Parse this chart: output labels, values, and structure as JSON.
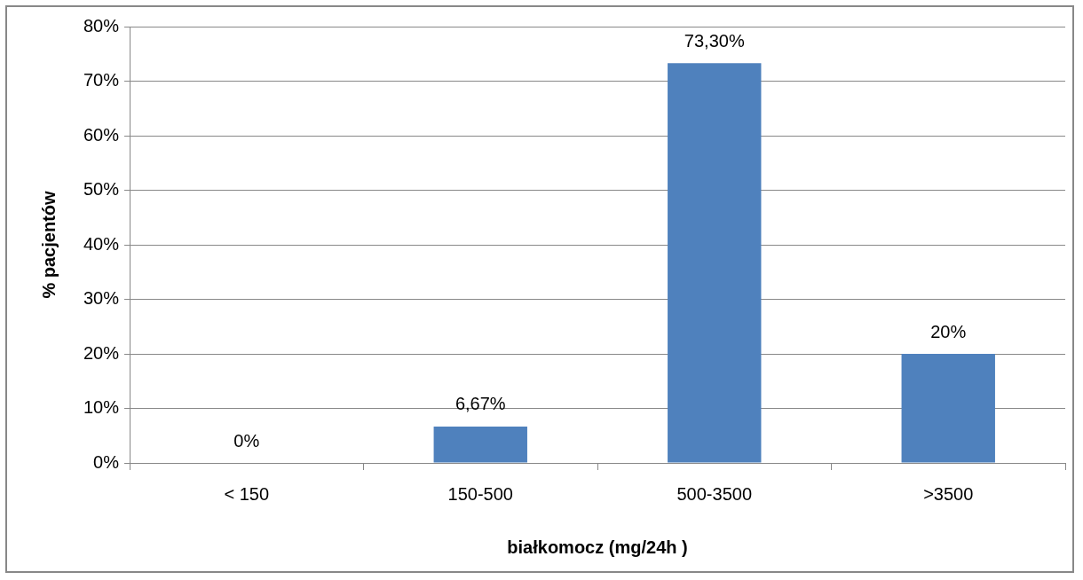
{
  "chart_data": {
    "type": "bar",
    "xlabel": "białkomocz (mg/24h )",
    "ylabel": "% pacjentów",
    "categories": [
      "< 150",
      "150-500",
      "500-3500",
      ">3500"
    ],
    "values": [
      0,
      6.67,
      73.3,
      20
    ],
    "color": "#4f81bd",
    "value_labels": [
      "0%",
      "6,67%",
      "73,30%",
      "20%"
    ],
    "ylim": [
      0,
      80
    ],
    "yticks": [
      {
        "value": 0,
        "label": "0%"
      },
      {
        "value": 10,
        "label": "10%"
      },
      {
        "value": 20,
        "label": "20%"
      },
      {
        "value": 30,
        "label": "30%"
      },
      {
        "value": 40,
        "label": "40%"
      },
      {
        "value": 50,
        "label": "50%"
      },
      {
        "value": 60,
        "label": "60%"
      },
      {
        "value": 70,
        "label": "70%"
      },
      {
        "value": 80,
        "label": "80%"
      }
    ],
    "grid": "y",
    "legend": false
  }
}
